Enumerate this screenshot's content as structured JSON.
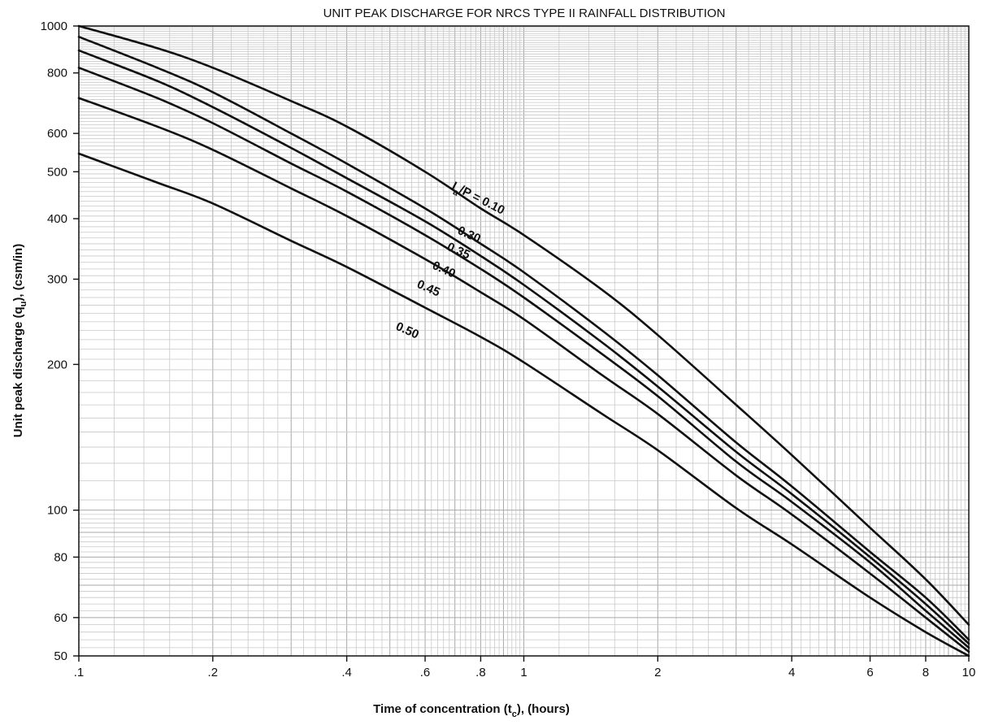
{
  "chart_data": {
    "type": "line",
    "title": "UNIT PEAK DISCHARGE FOR NRCS TYPE II RAINFALL DISTRIBUTION",
    "xlabel": "Time of concentration (t",
    "xlabel_sub": "c",
    "xlabel_end": "), (hours)",
    "ylabel": "Unit peak discharge (q",
    "ylabel_sub": "u",
    "ylabel_end": "), (csm/in)",
    "x_scale": "log",
    "y_scale": "log",
    "xlim": [
      0.1,
      10
    ],
    "ylim": [
      50,
      1000
    ],
    "grid": true,
    "x_ticks": [
      {
        "value": 0.1,
        "label": ".1"
      },
      {
        "value": 0.2,
        "label": ".2"
      },
      {
        "value": 0.4,
        "label": ".4"
      },
      {
        "value": 0.6,
        "label": ".6"
      },
      {
        "value": 0.8,
        "label": ".8"
      },
      {
        "value": 1,
        "label": "1"
      },
      {
        "value": 2,
        "label": "2"
      },
      {
        "value": 4,
        "label": "4"
      },
      {
        "value": 6,
        "label": "6"
      },
      {
        "value": 8,
        "label": "8"
      },
      {
        "value": 10,
        "label": "10"
      }
    ],
    "y_ticks": [
      {
        "value": 1000,
        "label": "1000"
      },
      {
        "value": 800,
        "label": "800"
      },
      {
        "value": 600,
        "label": "600"
      },
      {
        "value": 500,
        "label": "500"
      },
      {
        "value": 400,
        "label": "400"
      },
      {
        "value": 300,
        "label": "300"
      },
      {
        "value": 200,
        "label": "200"
      },
      {
        "value": 100,
        "label": "100"
      },
      {
        "value": 80,
        "label": "80"
      },
      {
        "value": 60,
        "label": "60"
      },
      {
        "value": 50,
        "label": "50"
      }
    ],
    "series": [
      {
        "name": "I",
        "label_parts": {
          "main": "I",
          "sub": "a",
          "rest": "/P = 0.10"
        },
        "x": [
          0.1,
          0.15,
          0.2,
          0.3,
          0.4,
          0.6,
          0.8,
          1,
          1.5,
          2,
          3,
          4,
          6,
          8,
          10
        ],
        "y": [
          1000,
          900,
          820,
          700,
          620,
          500,
          420,
          370,
          285,
          230,
          165,
          130,
          92,
          72,
          58
        ]
      },
      {
        "name": "0.30",
        "x": [
          0.1,
          0.15,
          0.2,
          0.3,
          0.4,
          0.6,
          0.8,
          1,
          1.5,
          2,
          3,
          4,
          6,
          8,
          10
        ],
        "y": [
          950,
          820,
          730,
          600,
          520,
          420,
          355,
          310,
          235,
          190,
          138,
          112,
          82,
          66,
          54
        ]
      },
      {
        "name": "0.35",
        "x": [
          0.1,
          0.15,
          0.2,
          0.3,
          0.4,
          0.6,
          0.8,
          1,
          1.5,
          2,
          3,
          4,
          6,
          8,
          10
        ],
        "y": [
          890,
          770,
          680,
          560,
          485,
          395,
          335,
          292,
          222,
          180,
          132,
          108,
          80,
          64,
          53
        ]
      },
      {
        "name": "0.40",
        "x": [
          0.1,
          0.15,
          0.2,
          0.3,
          0.4,
          0.6,
          0.8,
          1,
          1.5,
          2,
          3,
          4,
          6,
          8,
          10
        ],
        "y": [
          820,
          710,
          630,
          520,
          455,
          370,
          315,
          275,
          210,
          172,
          126,
          104,
          78,
          62,
          52
        ]
      },
      {
        "name": "0.45",
        "x": [
          0.1,
          0.15,
          0.2,
          0.3,
          0.4,
          0.6,
          0.8,
          1,
          1.5,
          2,
          3,
          4,
          6,
          8,
          10
        ],
        "y": [
          710,
          620,
          555,
          462,
          405,
          330,
          282,
          248,
          190,
          158,
          118,
          98,
          74,
          60,
          51
        ]
      },
      {
        "name": "0.50",
        "x": [
          0.1,
          0.15,
          0.2,
          0.3,
          0.4,
          0.6,
          0.8,
          1,
          1.5,
          2,
          3,
          4,
          6,
          8,
          10
        ],
        "y": [
          545,
          475,
          430,
          360,
          318,
          262,
          228,
          202,
          158,
          133,
          101,
          85,
          66,
          56,
          50
        ]
      }
    ]
  }
}
